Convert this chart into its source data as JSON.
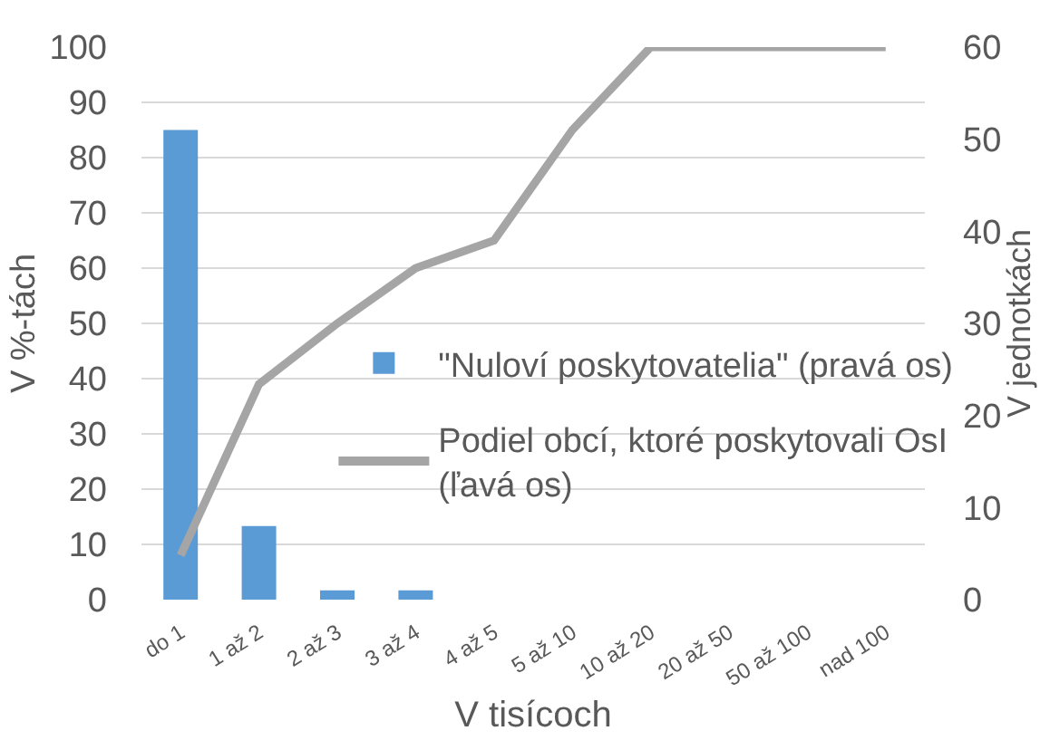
{
  "chart_data": {
    "type": "bar",
    "xlabel": "V tisícoch",
    "ylabel": "V %-tách",
    "y2label": "V jednotkách",
    "categories": [
      "do 1",
      "1 až 2",
      "2 až 3",
      "3 až 4",
      "4 až 5",
      "5 až 10",
      "10 až 20",
      "20 až 50",
      "50 až 100",
      "nad 100"
    ],
    "series": [
      {
        "name": "\"Nuloví poskytovatelia\" (pravá os)",
        "axis": "y2",
        "color": "#5b9bd5",
        "values": [
          51,
          8,
          1,
          1,
          0,
          0,
          0,
          0,
          0,
          0
        ]
      },
      {
        "name": "Podiel obcí, ktoré poskytovali OsI (ľavá os)",
        "type": "line",
        "color": "#a5a5a5",
        "line_style": "solid",
        "values": [
          8,
          39,
          50,
          60,
          65,
          85,
          100,
          100,
          100,
          100
        ]
      }
    ],
    "ylim": [
      0,
      100
    ],
    "yticks": [
      0,
      10,
      20,
      30,
      40,
      50,
      60,
      70,
      80,
      90,
      100
    ],
    "y2lim": [
      0,
      60
    ],
    "y2ticks": [
      0,
      10,
      20,
      30,
      40,
      50,
      60
    ],
    "grid": "y",
    "legend": "right",
    "marker": "none"
  }
}
